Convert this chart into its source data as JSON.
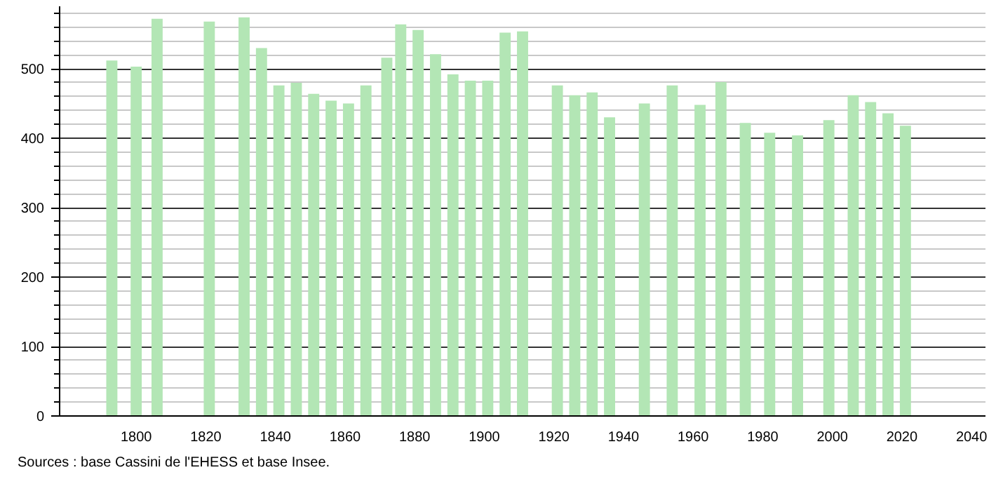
{
  "chart_data": {
    "type": "bar",
    "x": [
      1793,
      1800,
      1806,
      1821,
      1831,
      1836,
      1841,
      1846,
      1851,
      1856,
      1861,
      1866,
      1872,
      1876,
      1881,
      1886,
      1891,
      1896,
      1901,
      1906,
      1911,
      1921,
      1926,
      1931,
      1936,
      1946,
      1954,
      1962,
      1968,
      1975,
      1982,
      1990,
      1999,
      2006,
      2011,
      2016,
      2021
    ],
    "values": [
      512,
      503,
      572,
      568,
      574,
      530,
      476,
      480,
      464,
      454,
      450,
      476,
      516,
      564,
      556,
      521,
      492,
      483,
      483,
      552,
      554,
      476,
      462,
      466,
      430,
      450,
      476,
      448,
      481,
      422,
      408,
      404,
      426,
      462,
      452,
      436,
      418
    ],
    "color": "#b3e6b5",
    "xlim": [
      1778,
      2044
    ],
    "xticks": [
      1800,
      1820,
      1840,
      1860,
      1880,
      1900,
      1920,
      1940,
      1960,
      1980,
      2000,
      2020,
      2040
    ],
    "ylim": [
      0,
      590
    ],
    "yticks": [
      0,
      100,
      200,
      300,
      400,
      500
    ],
    "grid": "y",
    "annotations": [
      "Sources : base Cassini de l'EHESS et base Insee."
    ]
  }
}
